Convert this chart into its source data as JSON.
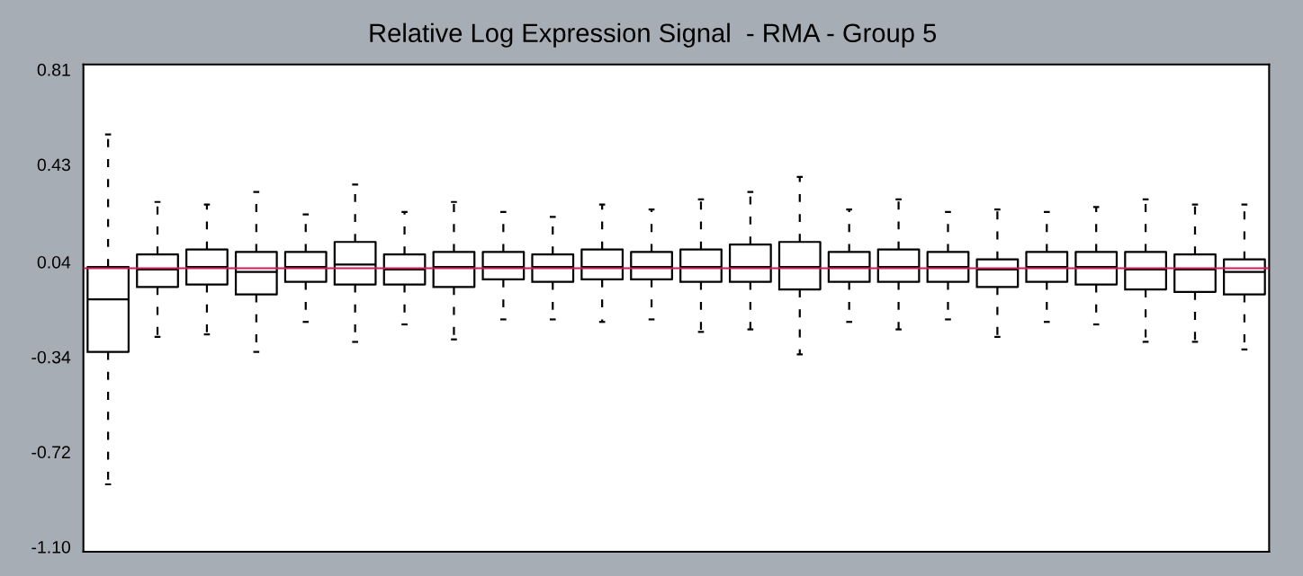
{
  "chart_data": {
    "type": "box",
    "title": "Relative Log Expression Signal  - RMA - Group 5",
    "categories": [
      null,
      null,
      null,
      null,
      null,
      null,
      null,
      null,
      null,
      null,
      null,
      null,
      null,
      null,
      null,
      null,
      null,
      null,
      null,
      null,
      null,
      null,
      null,
      null
    ],
    "boxes": [
      {
        "low": -0.85,
        "q1": -0.32,
        "median": -0.11,
        "q3": 0.02,
        "high": 0.55
      },
      {
        "low": -0.26,
        "q1": -0.06,
        "median": 0.01,
        "q3": 0.07,
        "high": 0.28
      },
      {
        "low": -0.25,
        "q1": -0.05,
        "median": 0.02,
        "q3": 0.09,
        "high": 0.27
      },
      {
        "low": -0.32,
        "q1": -0.09,
        "median": 0.0,
        "q3": 0.08,
        "high": 0.32
      },
      {
        "low": -0.2,
        "q1": -0.04,
        "median": 0.02,
        "q3": 0.08,
        "high": 0.23
      },
      {
        "low": -0.28,
        "q1": -0.05,
        "median": 0.03,
        "q3": 0.12,
        "high": 0.35
      },
      {
        "low": -0.21,
        "q1": -0.05,
        "median": 0.01,
        "q3": 0.07,
        "high": 0.24
      },
      {
        "low": -0.27,
        "q1": -0.06,
        "median": 0.02,
        "q3": 0.08,
        "high": 0.28
      },
      {
        "low": -0.19,
        "q1": -0.03,
        "median": 0.02,
        "q3": 0.08,
        "high": 0.24
      },
      {
        "low": -0.19,
        "q1": -0.04,
        "median": 0.02,
        "q3": 0.07,
        "high": 0.22
      },
      {
        "low": -0.2,
        "q1": -0.03,
        "median": 0.02,
        "q3": 0.09,
        "high": 0.27
      },
      {
        "low": -0.19,
        "q1": -0.03,
        "median": 0.02,
        "q3": 0.08,
        "high": 0.25
      },
      {
        "low": -0.24,
        "q1": -0.04,
        "median": 0.02,
        "q3": 0.09,
        "high": 0.29
      },
      {
        "low": -0.23,
        "q1": -0.04,
        "median": 0.02,
        "q3": 0.11,
        "high": 0.32
      },
      {
        "low": -0.33,
        "q1": -0.07,
        "median": 0.02,
        "q3": 0.12,
        "high": 0.38
      },
      {
        "low": -0.2,
        "q1": -0.04,
        "median": 0.02,
        "q3": 0.08,
        "high": 0.25
      },
      {
        "low": -0.23,
        "q1": -0.04,
        "median": 0.02,
        "q3": 0.09,
        "high": 0.29
      },
      {
        "low": -0.19,
        "q1": -0.04,
        "median": 0.02,
        "q3": 0.08,
        "high": 0.24
      },
      {
        "low": -0.26,
        "q1": -0.06,
        "median": 0.01,
        "q3": 0.05,
        "high": 0.25
      },
      {
        "low": -0.2,
        "q1": -0.04,
        "median": 0.02,
        "q3": 0.08,
        "high": 0.24
      },
      {
        "low": -0.21,
        "q1": -0.05,
        "median": 0.02,
        "q3": 0.08,
        "high": 0.26
      },
      {
        "low": -0.28,
        "q1": -0.07,
        "median": 0.01,
        "q3": 0.08,
        "high": 0.29
      },
      {
        "low": -0.28,
        "q1": -0.08,
        "median": 0.01,
        "q3": 0.07,
        "high": 0.27
      },
      {
        "low": -0.31,
        "q1": -0.09,
        "median": 0.0,
        "q3": 0.05,
        "high": 0.27
      }
    ],
    "ylim": [
      -1.12,
      0.83
    ],
    "yticks": [
      0.81,
      0.43,
      0.04,
      -0.34,
      -0.72,
      {
        "value": -1.1,
        "label": "-1.10"
      }
    ],
    "ref_lines": [
      {
        "axis": "y",
        "value": 0.015,
        "color": "#d01c5a"
      }
    ],
    "line_style": "dashed",
    "grid": false
  }
}
